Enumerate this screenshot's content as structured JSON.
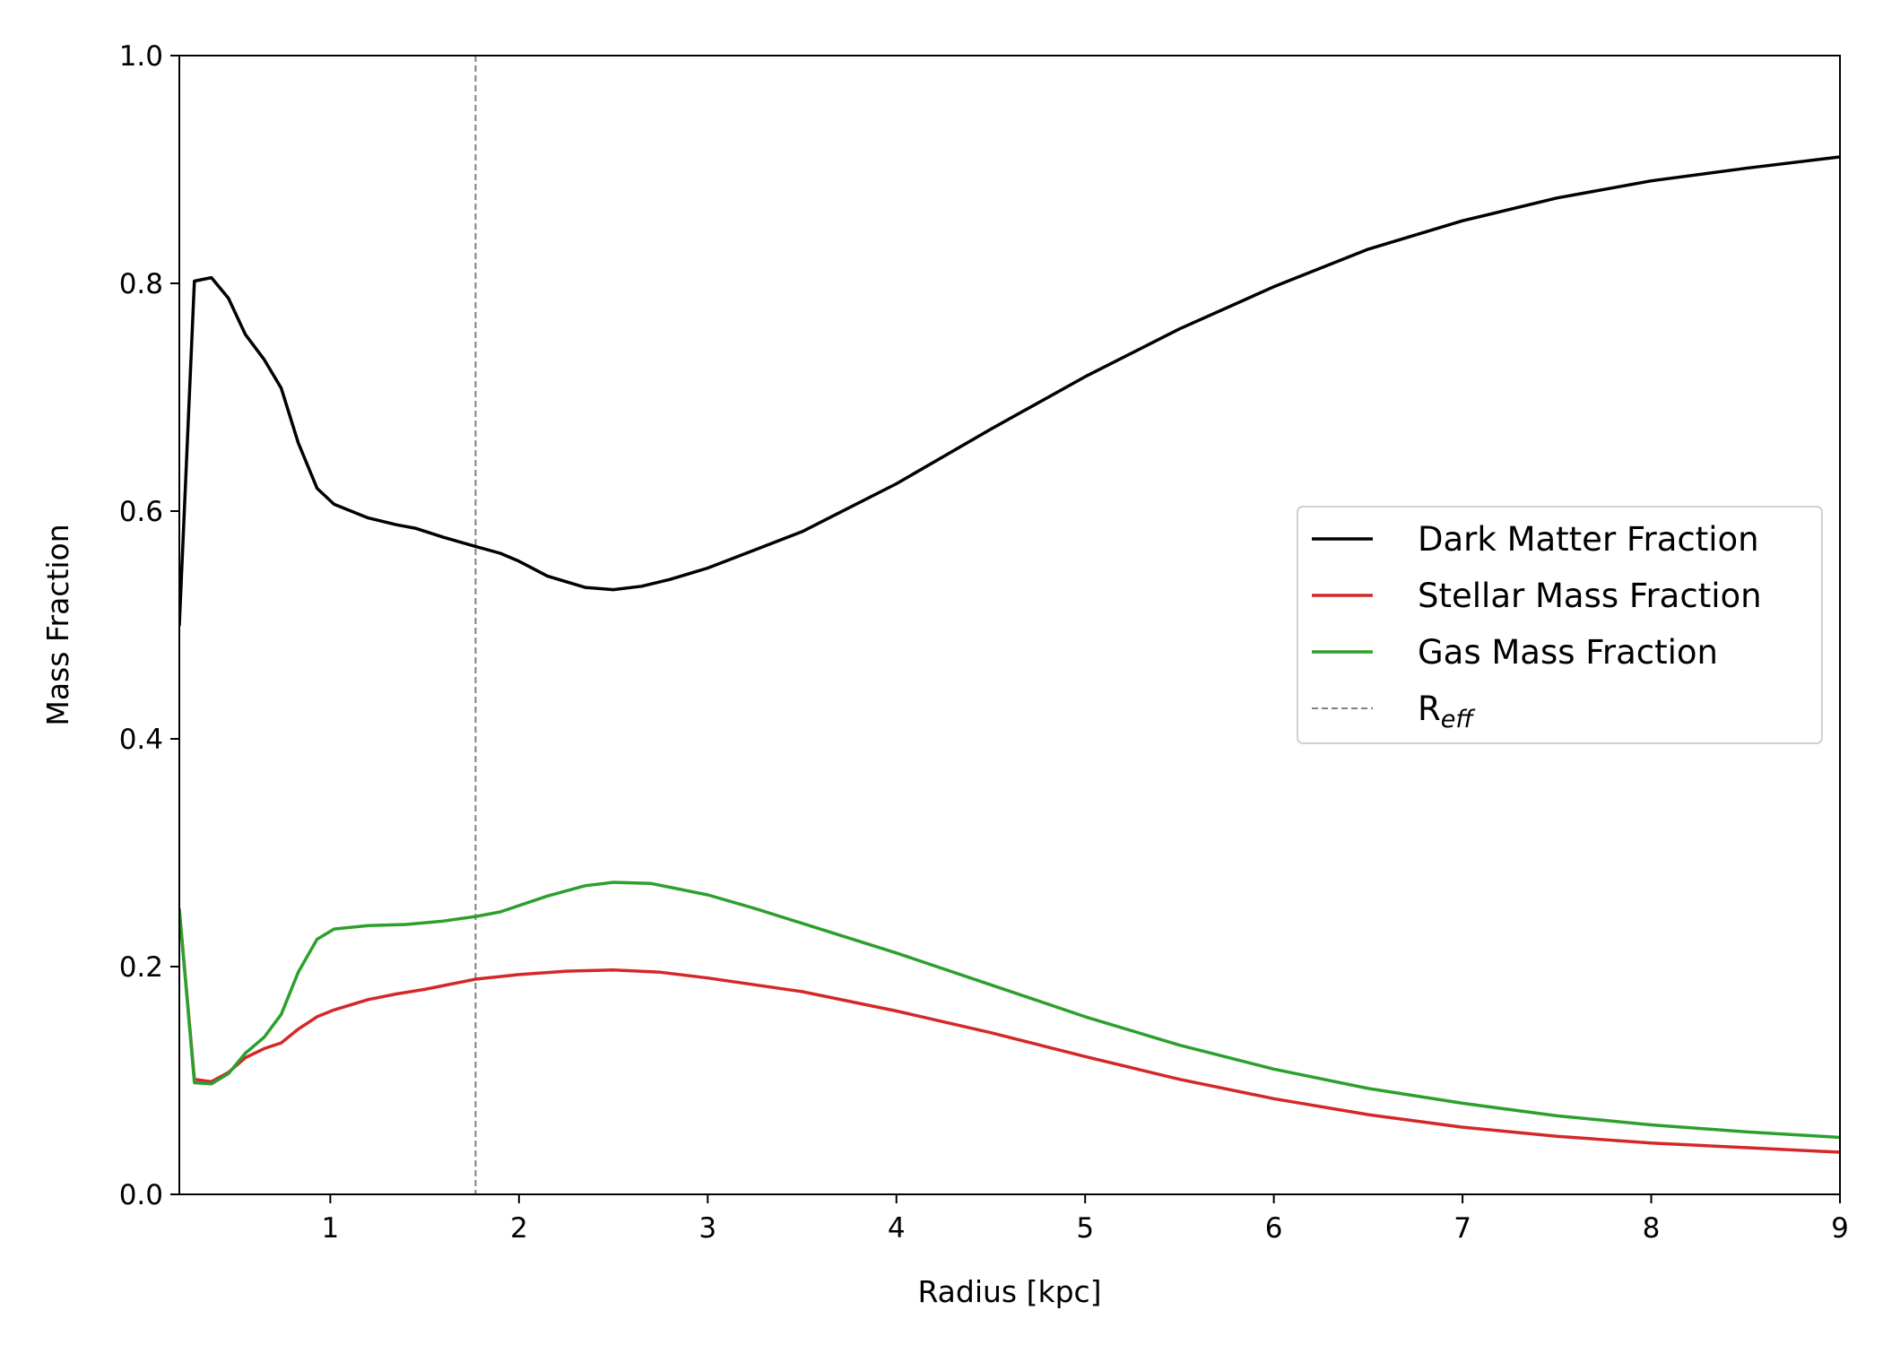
{
  "chart_data": {
    "type": "line",
    "xlabel": "Radius [kpc]",
    "ylabel": "Mass Fraction",
    "xlim": [
      0.2,
      9
    ],
    "ylim": [
      0.0,
      1.0
    ],
    "xticks": [
      1,
      2,
      3,
      4,
      5,
      6,
      7,
      8,
      9
    ],
    "yticks": [
      0.0,
      0.2,
      0.4,
      0.6,
      0.8,
      1.0
    ],
    "xtick_labels": [
      "1",
      "2",
      "3",
      "4",
      "5",
      "6",
      "7",
      "8",
      "9"
    ],
    "ytick_labels": [
      "0.0",
      "0.2",
      "0.4",
      "0.6",
      "0.8",
      "1.0"
    ],
    "grid": false,
    "legend_position": "center-right",
    "reference_line": {
      "x": 1.77,
      "label": "R",
      "label_sub": "eff",
      "color": "#808080",
      "style": "dashed"
    },
    "series": [
      {
        "name": "Dark Matter Fraction",
        "color": "#000000",
        "points": [
          [
            0.2,
            0.5
          ],
          [
            0.28,
            0.802
          ],
          [
            0.37,
            0.805
          ],
          [
            0.46,
            0.787
          ],
          [
            0.55,
            0.755
          ],
          [
            0.65,
            0.733
          ],
          [
            0.74,
            0.708
          ],
          [
            0.83,
            0.66
          ],
          [
            0.93,
            0.62
          ],
          [
            1.02,
            0.606
          ],
          [
            1.2,
            0.594
          ],
          [
            1.35,
            0.588
          ],
          [
            1.45,
            0.585
          ],
          [
            1.6,
            0.577
          ],
          [
            1.77,
            0.569
          ],
          [
            1.9,
            0.563
          ],
          [
            2.0,
            0.556
          ],
          [
            2.15,
            0.543
          ],
          [
            2.35,
            0.533
          ],
          [
            2.5,
            0.531
          ],
          [
            2.65,
            0.534
          ],
          [
            2.8,
            0.54
          ],
          [
            3.0,
            0.55
          ],
          [
            3.25,
            0.566
          ],
          [
            3.5,
            0.582
          ],
          [
            3.75,
            0.603
          ],
          [
            4.0,
            0.624
          ],
          [
            4.5,
            0.672
          ],
          [
            5.0,
            0.718
          ],
          [
            5.5,
            0.76
          ],
          [
            6.0,
            0.797
          ],
          [
            6.5,
            0.83
          ],
          [
            7.0,
            0.855
          ],
          [
            7.5,
            0.875
          ],
          [
            8.0,
            0.89
          ],
          [
            8.5,
            0.901
          ],
          [
            9.0,
            0.911
          ]
        ]
      },
      {
        "name": "Stellar Mass Fraction",
        "color": "#d62728",
        "points": [
          [
            0.2,
            0.25
          ],
          [
            0.28,
            0.101
          ],
          [
            0.37,
            0.099
          ],
          [
            0.46,
            0.107
          ],
          [
            0.55,
            0.12
          ],
          [
            0.65,
            0.128
          ],
          [
            0.74,
            0.133
          ],
          [
            0.83,
            0.145
          ],
          [
            0.93,
            0.156
          ],
          [
            1.02,
            0.162
          ],
          [
            1.2,
            0.171
          ],
          [
            1.35,
            0.176
          ],
          [
            1.5,
            0.18
          ],
          [
            1.77,
            0.189
          ],
          [
            2.0,
            0.193
          ],
          [
            2.25,
            0.196
          ],
          [
            2.5,
            0.197
          ],
          [
            2.75,
            0.195
          ],
          [
            3.0,
            0.19
          ],
          [
            3.25,
            0.184
          ],
          [
            3.5,
            0.178
          ],
          [
            4.0,
            0.161
          ],
          [
            4.5,
            0.142
          ],
          [
            5.0,
            0.121
          ],
          [
            5.5,
            0.101
          ],
          [
            6.0,
            0.084
          ],
          [
            6.5,
            0.07
          ],
          [
            7.0,
            0.059
          ],
          [
            7.5,
            0.051
          ],
          [
            8.0,
            0.045
          ],
          [
            8.5,
            0.041
          ],
          [
            9.0,
            0.037
          ]
        ]
      },
      {
        "name": "Gas Mass Fraction",
        "color": "#2ca02c",
        "points": [
          [
            0.2,
            0.25
          ],
          [
            0.28,
            0.098
          ],
          [
            0.37,
            0.097
          ],
          [
            0.46,
            0.106
          ],
          [
            0.55,
            0.124
          ],
          [
            0.65,
            0.138
          ],
          [
            0.74,
            0.158
          ],
          [
            0.83,
            0.195
          ],
          [
            0.93,
            0.224
          ],
          [
            1.02,
            0.233
          ],
          [
            1.2,
            0.236
          ],
          [
            1.4,
            0.237
          ],
          [
            1.6,
            0.24
          ],
          [
            1.77,
            0.244
          ],
          [
            1.9,
            0.248
          ],
          [
            2.15,
            0.262
          ],
          [
            2.35,
            0.271
          ],
          [
            2.5,
            0.274
          ],
          [
            2.7,
            0.273
          ],
          [
            3.0,
            0.263
          ],
          [
            3.25,
            0.251
          ],
          [
            3.5,
            0.238
          ],
          [
            4.0,
            0.212
          ],
          [
            4.5,
            0.184
          ],
          [
            5.0,
            0.156
          ],
          [
            5.5,
            0.131
          ],
          [
            6.0,
            0.11
          ],
          [
            6.5,
            0.093
          ],
          [
            7.0,
            0.08
          ],
          [
            7.5,
            0.069
          ],
          [
            8.0,
            0.061
          ],
          [
            8.5,
            0.055
          ],
          [
            9.0,
            0.05
          ]
        ]
      }
    ]
  }
}
